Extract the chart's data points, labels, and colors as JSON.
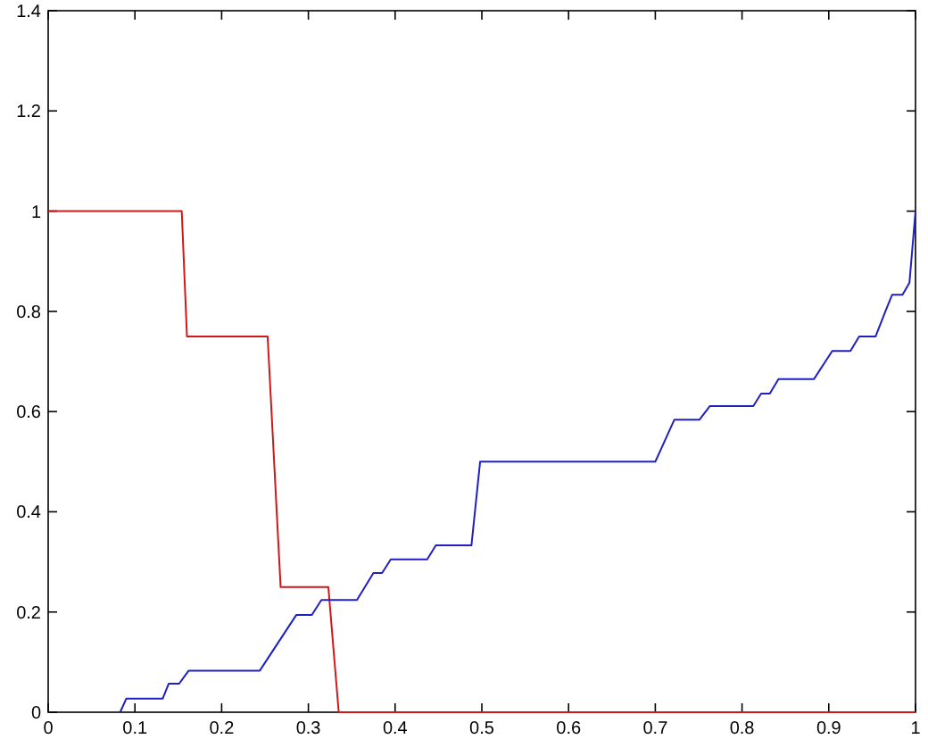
{
  "chart_data": {
    "type": "line",
    "xlim": [
      0,
      1
    ],
    "ylim": [
      0,
      1.4
    ],
    "xticks": [
      0,
      0.1,
      0.2,
      0.3,
      0.4,
      0.5,
      0.6,
      0.7,
      0.8,
      0.9,
      1
    ],
    "yticks": [
      0,
      0.2,
      0.4,
      0.6,
      0.8,
      1,
      1.2,
      1.4
    ],
    "grid": false,
    "marker": "none",
    "line_style": "solid",
    "series": [
      {
        "color": "#d01818",
        "x": [
          0,
          0.154,
          0.16,
          0.253,
          0.268,
          0.323,
          0.335,
          1
        ],
        "values": [
          1,
          1,
          0.75,
          0.75,
          0.25,
          0.25,
          0,
          0
        ]
      },
      {
        "color": "#2020c0",
        "x": [
          0.083,
          0.09,
          0.132,
          0.139,
          0.151,
          0.162,
          0.244,
          0.286,
          0.304,
          0.315,
          0.356,
          0.375,
          0.385,
          0.395,
          0.437,
          0.447,
          0.488,
          0.498,
          0.7,
          0.722,
          0.751,
          0.763,
          0.813,
          0.822,
          0.832,
          0.842,
          0.883,
          0.904,
          0.925,
          0.935,
          0.954,
          0.966,
          0.973,
          0.985,
          0.993,
          1
        ],
        "values": [
          0,
          0.027,
          0.027,
          0.057,
          0.057,
          0.083,
          0.083,
          0.194,
          0.194,
          0.224,
          0.224,
          0.278,
          0.278,
          0.305,
          0.305,
          0.333,
          0.333,
          0.5,
          0.5,
          0.584,
          0.584,
          0.611,
          0.611,
          0.636,
          0.636,
          0.665,
          0.665,
          0.721,
          0.721,
          0.75,
          0.75,
          0.803,
          0.833,
          0.833,
          0.857,
          1
        ]
      }
    ]
  }
}
